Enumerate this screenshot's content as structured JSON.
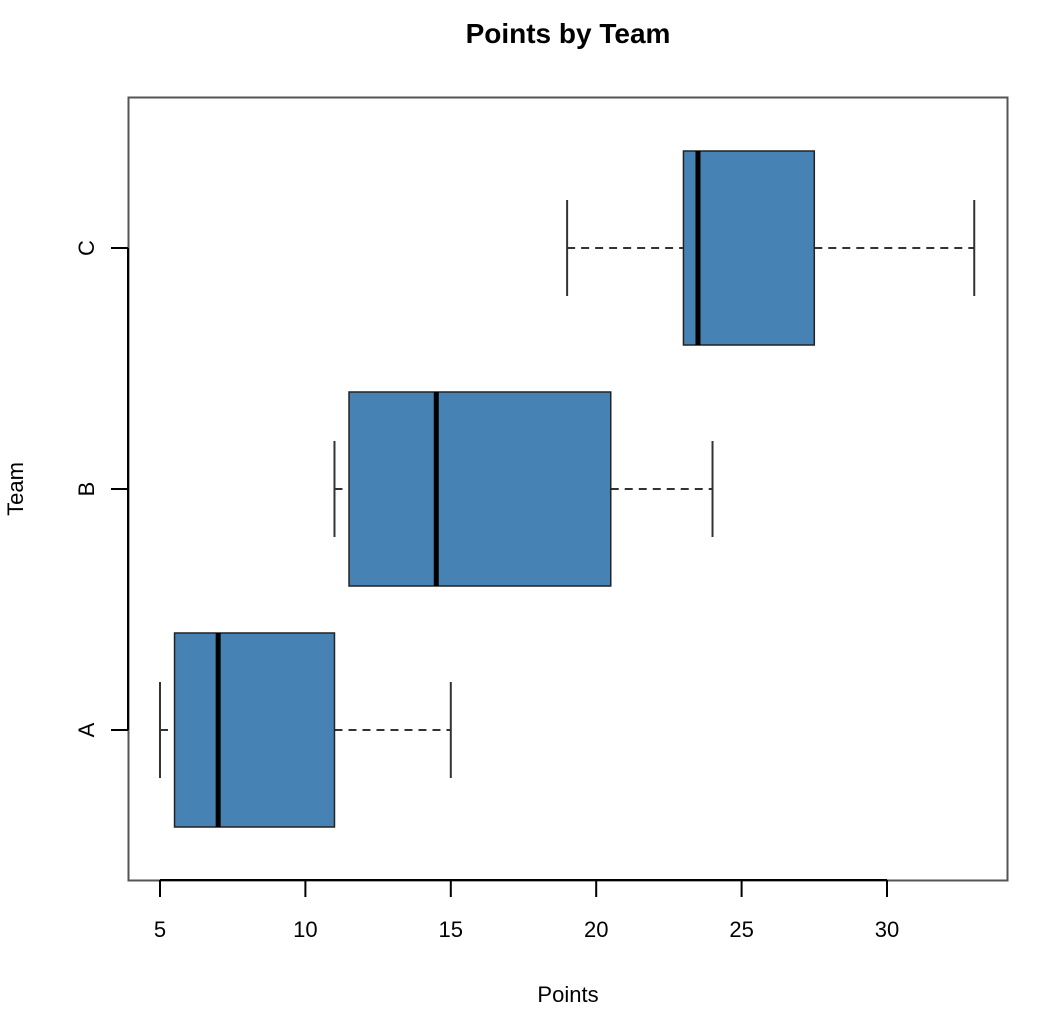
{
  "chart_data": {
    "type": "boxplot",
    "orientation": "horizontal",
    "title": "Points by Team",
    "xlabel": "Points",
    "ylabel": "Team",
    "xlim": [
      3.9,
      34.1
    ],
    "x_ticks": [
      5,
      10,
      15,
      20,
      25,
      30
    ],
    "x_tick_labels": [
      "5",
      "10",
      "15",
      "20",
      "25",
      "30"
    ],
    "categories": [
      "A",
      "B",
      "C"
    ],
    "grid": false,
    "legend": null,
    "box_color": "#4682B4",
    "boxes": [
      {
        "name": "A",
        "whisker_low": 5,
        "q1": 5.5,
        "median": 7,
        "q3": 11,
        "whisker_high": 15
      },
      {
        "name": "B",
        "whisker_low": 11,
        "q1": 11.5,
        "median": 14.5,
        "q3": 20.5,
        "whisker_high": 24
      },
      {
        "name": "C",
        "whisker_low": 19,
        "q1": 23,
        "median": 23.5,
        "q3": 27.5,
        "whisker_high": 33
      }
    ]
  }
}
